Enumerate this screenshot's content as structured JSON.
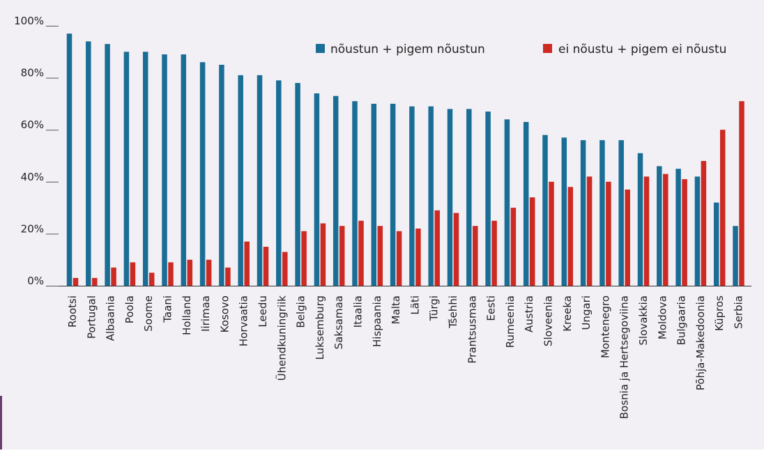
{
  "chart_data": {
    "type": "bar",
    "categories": [
      "Rootsi",
      "Portugal",
      "Albaania",
      "Poola",
      "Soome",
      "Taani",
      "Holland",
      "Iirimaa",
      "Kosovo",
      "Horvaatia",
      "Leedu",
      "Ühendkuningriik",
      "Belgia",
      "Luksemburg",
      "Saksamaa",
      "Itaalia",
      "Hispaania",
      "Malta",
      "Läti",
      "Türgi",
      "Tšehhi",
      "Prantsusmaa",
      "Eesti",
      "Rumeenia",
      "Austria",
      "Sloveenia",
      "Kreeka",
      "Ungari",
      "Montenegro",
      "Bosnia ja Hertsegoviina",
      "Slovakkia",
      "Moldova",
      "Bulgaaria",
      "Põhja-Makedoonia",
      "Küpros",
      "Serbia"
    ],
    "series": [
      {
        "name": "nõustun + pigem nõustun",
        "color": "#1a6e96",
        "values": [
          97,
          94,
          93,
          90,
          90,
          89,
          89,
          86,
          85,
          81,
          81,
          79,
          78,
          74,
          73,
          71,
          70,
          70,
          69,
          69,
          68,
          68,
          67,
          64,
          63,
          58,
          57,
          56,
          56,
          56,
          51,
          46,
          45,
          42,
          32,
          23
        ]
      },
      {
        "name": "ei nõustu + pigem ei nõustu",
        "color": "#cc2a22",
        "values": [
          3,
          3,
          7,
          9,
          5,
          9,
          10,
          10,
          7,
          17,
          15,
          13,
          21,
          24,
          23,
          25,
          23,
          21,
          22,
          29,
          28,
          23,
          25,
          30,
          34,
          40,
          38,
          42,
          40,
          37,
          42,
          43,
          41,
          48,
          60,
          71
        ]
      }
    ],
    "yticks": [
      "0%",
      "20%",
      "40%",
      "60%",
      "80%",
      "100%"
    ],
    "ylim": [
      0,
      100
    ],
    "grid": false,
    "legend_position": "top-right"
  }
}
